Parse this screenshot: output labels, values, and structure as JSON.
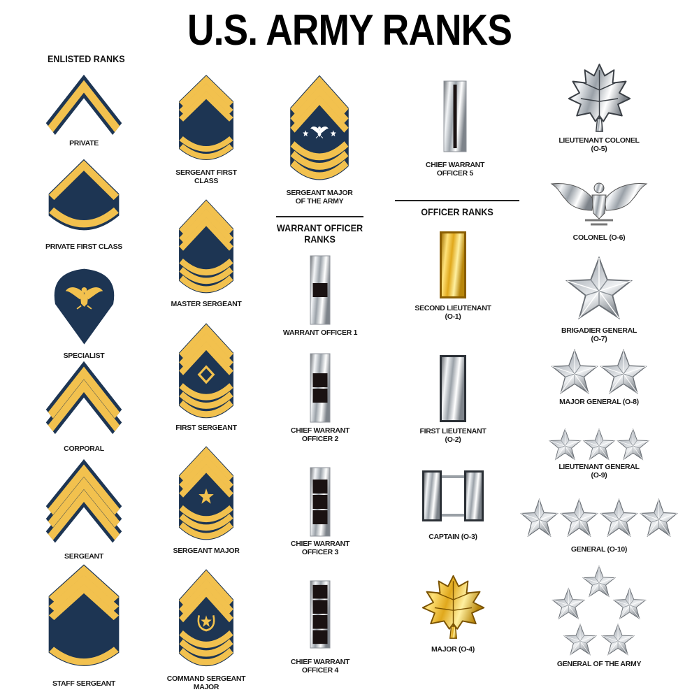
{
  "title": "U.S. ARMY RANKS",
  "sections": {
    "enlisted": "ENLISTED RANKS",
    "warrant": [
      "WARRANT OFFICER",
      "RANKS"
    ],
    "officer": "OFFICER RANKS"
  },
  "colors": {
    "navy": "#1d3553",
    "gold": "#f2c14e",
    "silver": "#c9cdd2",
    "black": "#1a1212"
  },
  "ranks": [
    {
      "label": [
        "PRIVATE"
      ],
      "insignia": {
        "type": "stripes",
        "chevrons": 1,
        "rockers": 0
      }
    },
    {
      "label": [
        "PRIVATE FIRST CLASS"
      ],
      "insignia": {
        "type": "stripes",
        "chevrons": 1,
        "rockers": 1
      }
    },
    {
      "label": [
        "SPECIALIST"
      ],
      "insignia": {
        "type": "specialist"
      }
    },
    {
      "label": [
        "CORPORAL"
      ],
      "insignia": {
        "type": "stripes",
        "chevrons": 2,
        "rockers": 0
      }
    },
    {
      "label": [
        "SERGEANT"
      ],
      "insignia": {
        "type": "stripes",
        "chevrons": 3,
        "rockers": 0
      }
    },
    {
      "label": [
        "STAFF SERGEANT"
      ],
      "insignia": {
        "type": "stripes",
        "chevrons": 3,
        "rockers": 1
      }
    },
    {
      "label": [
        "SERGEANT FIRST",
        "CLASS"
      ],
      "insignia": {
        "type": "stripes",
        "chevrons": 3,
        "rockers": 2
      }
    },
    {
      "label": [
        "MASTER SERGEANT"
      ],
      "insignia": {
        "type": "stripes",
        "chevrons": 3,
        "rockers": 3
      }
    },
    {
      "label": [
        "FIRST SERGEANT"
      ],
      "insignia": {
        "type": "stripes",
        "chevrons": 3,
        "rockers": 3,
        "device": "diamond"
      }
    },
    {
      "label": [
        "SERGEANT MAJOR"
      ],
      "insignia": {
        "type": "stripes",
        "chevrons": 3,
        "rockers": 3,
        "device": "star"
      }
    },
    {
      "label": [
        "COMMAND SERGEANT",
        "MAJOR"
      ],
      "insignia": {
        "type": "stripes",
        "chevrons": 3,
        "rockers": 3,
        "device": "wreath-star"
      }
    },
    {
      "label": [
        "SERGEANT MAJOR",
        "OF THE ARMY"
      ],
      "insignia": {
        "type": "stripes",
        "chevrons": 3,
        "rockers": 3,
        "device": "eagle-stars"
      }
    },
    {
      "label": [
        "WARRANT OFFICER 1"
      ],
      "insignia": {
        "type": "warrant",
        "squares": 1
      }
    },
    {
      "label": [
        "CHIEF WARRANT",
        "OFFICER 2"
      ],
      "insignia": {
        "type": "warrant",
        "squares": 2
      }
    },
    {
      "label": [
        "CHIEF WARRANT",
        "OFFICER 3"
      ],
      "insignia": {
        "type": "warrant",
        "squares": 3
      }
    },
    {
      "label": [
        "CHIEF WARRANT",
        "OFFICER 4"
      ],
      "insignia": {
        "type": "warrant",
        "squares": 4
      }
    },
    {
      "label": [
        "CHIEF WARRANT",
        "OFFICER 5"
      ],
      "insignia": {
        "type": "cw5"
      }
    },
    {
      "label": [
        "SECOND LIEUTENANT",
        "(O-1)"
      ],
      "insignia": {
        "type": "bar",
        "metal": "gold"
      }
    },
    {
      "label": [
        "FIRST LIEUTENANT",
        "(O-2)"
      ],
      "insignia": {
        "type": "bar",
        "metal": "silver"
      }
    },
    {
      "label": [
        "CAPTAIN (O-3)"
      ],
      "insignia": {
        "type": "captain"
      }
    },
    {
      "label": [
        "MAJOR (O-4)"
      ],
      "insignia": {
        "type": "oak-leaf",
        "metal": "gold"
      }
    },
    {
      "label": [
        "LIEUTENANT COLONEL",
        "(O-5)"
      ],
      "insignia": {
        "type": "oak-leaf",
        "metal": "silver"
      }
    },
    {
      "label": [
        "COLONEL (O-6)"
      ],
      "insignia": {
        "type": "eagle"
      }
    },
    {
      "label": [
        "BRIGADIER GENERAL",
        "(O-7)"
      ],
      "insignia": {
        "type": "stars",
        "count": 1
      }
    },
    {
      "label": [
        "MAJOR GENERAL (O-8)"
      ],
      "insignia": {
        "type": "stars",
        "count": 2
      }
    },
    {
      "label": [
        "LIEUTENANT GENERAL",
        "(O-9)"
      ],
      "insignia": {
        "type": "stars",
        "count": 3
      }
    },
    {
      "label": [
        "GENERAL (O-10)"
      ],
      "insignia": {
        "type": "stars",
        "count": 4
      }
    },
    {
      "label": [
        "GENERAL OF THE ARMY"
      ],
      "insignia": {
        "type": "star-circle",
        "count": 5
      }
    }
  ]
}
